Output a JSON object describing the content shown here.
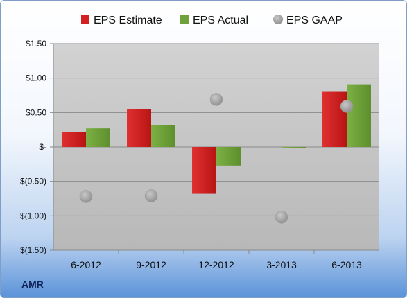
{
  "ticker": "AMR",
  "colors": {
    "estimate": "#d42020",
    "actual": "#6fa23a",
    "gaap": "#a8a8a8",
    "plot_bg": "#c9c9c9"
  },
  "chart_data": {
    "type": "bar",
    "categories": [
      "6-2012",
      "9-2012",
      "12-2012",
      "3-2013",
      "6-2013"
    ],
    "series": [
      {
        "name": "EPS Estimate",
        "kind": "bar",
        "color": "#d42020",
        "values": [
          0.22,
          0.55,
          -0.68,
          0,
          0.8
        ]
      },
      {
        "name": "EPS Actual",
        "kind": "bar",
        "color": "#6fa23a",
        "values": [
          0.27,
          0.32,
          -0.27,
          -0.02,
          0.91
        ]
      },
      {
        "name": "EPS GAAP",
        "kind": "marker",
        "color": "#a8a8a8",
        "values": [
          -0.72,
          -0.71,
          0.69,
          -1.02,
          0.59
        ]
      }
    ],
    "ylim": [
      -1.5,
      1.5
    ],
    "yticks": [
      1.5,
      1.0,
      0.5,
      0,
      -0.5,
      -1.0,
      -1.5
    ],
    "ytick_labels": [
      "$1.50",
      "$1.00",
      "$0.50",
      "$-",
      "$(0.50)",
      "$(1.00)",
      "$(1.50)"
    ],
    "grid": true,
    "legend_position": "top"
  }
}
